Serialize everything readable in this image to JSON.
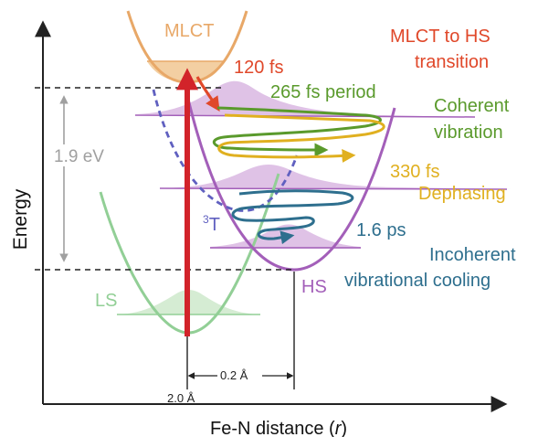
{
  "axes": {
    "y_label": "Energy",
    "x_label_prefix": "Fe-N distance (",
    "x_label_var": "r",
    "x_label_suffix": ")"
  },
  "states": {
    "mlct": "MLCT",
    "ls": "LS",
    "hs": "HS",
    "triplet_sup": "3",
    "triplet": "T"
  },
  "energy_gap": "1.9 eV",
  "distances": {
    "ls_position": "2.0 Å",
    "delta_r": "0.2 Å"
  },
  "annotations": {
    "transition_line1": "MLCT to HS",
    "transition_line2": "transition",
    "t120": "120 fs",
    "period": "265 fs period",
    "coherent_line1": "Coherent",
    "coherent_line2": "vibration",
    "t330": "330 fs",
    "dephasing": "Dephasing",
    "t16": "1.6 ps",
    "incoherent_line1": "Incoherent",
    "incoherent_line2": "vibrational cooling"
  },
  "colors": {
    "mlct": "#e8a868",
    "mlct_fill": "#f3cfa2",
    "ls": "#92cf96",
    "ls_fill": "#d5ecd3",
    "hs": "#a35fb9",
    "hs_fill": "#dfc2e6",
    "triplet": "#6060c0",
    "excitation": "#d2232a",
    "transition": "#e0482a",
    "coherent": "#5a9a2c",
    "dephasing": "#e0b020",
    "cooling": "#2e6f8e",
    "energy_gap": "#a0a0a0",
    "axis": "#222222"
  }
}
